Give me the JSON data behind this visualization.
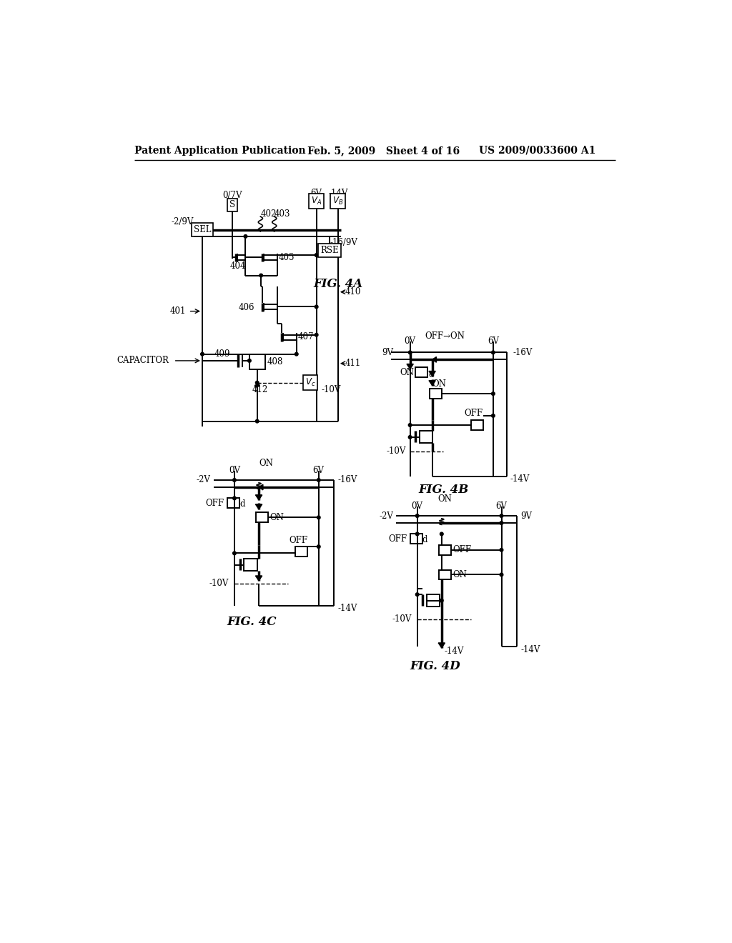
{
  "bg_color": "#ffffff",
  "header_left": "Patent Application Publication",
  "header_mid": "Feb. 5, 2009   Sheet 4 of 16",
  "header_right": "US 2009/0033600 A1",
  "fig4a_label": "FIG. 4A",
  "fig4b_label": "FIG. 4B",
  "fig4c_label": "FIG. 4C",
  "fig4d_label": "FIG. 4D"
}
